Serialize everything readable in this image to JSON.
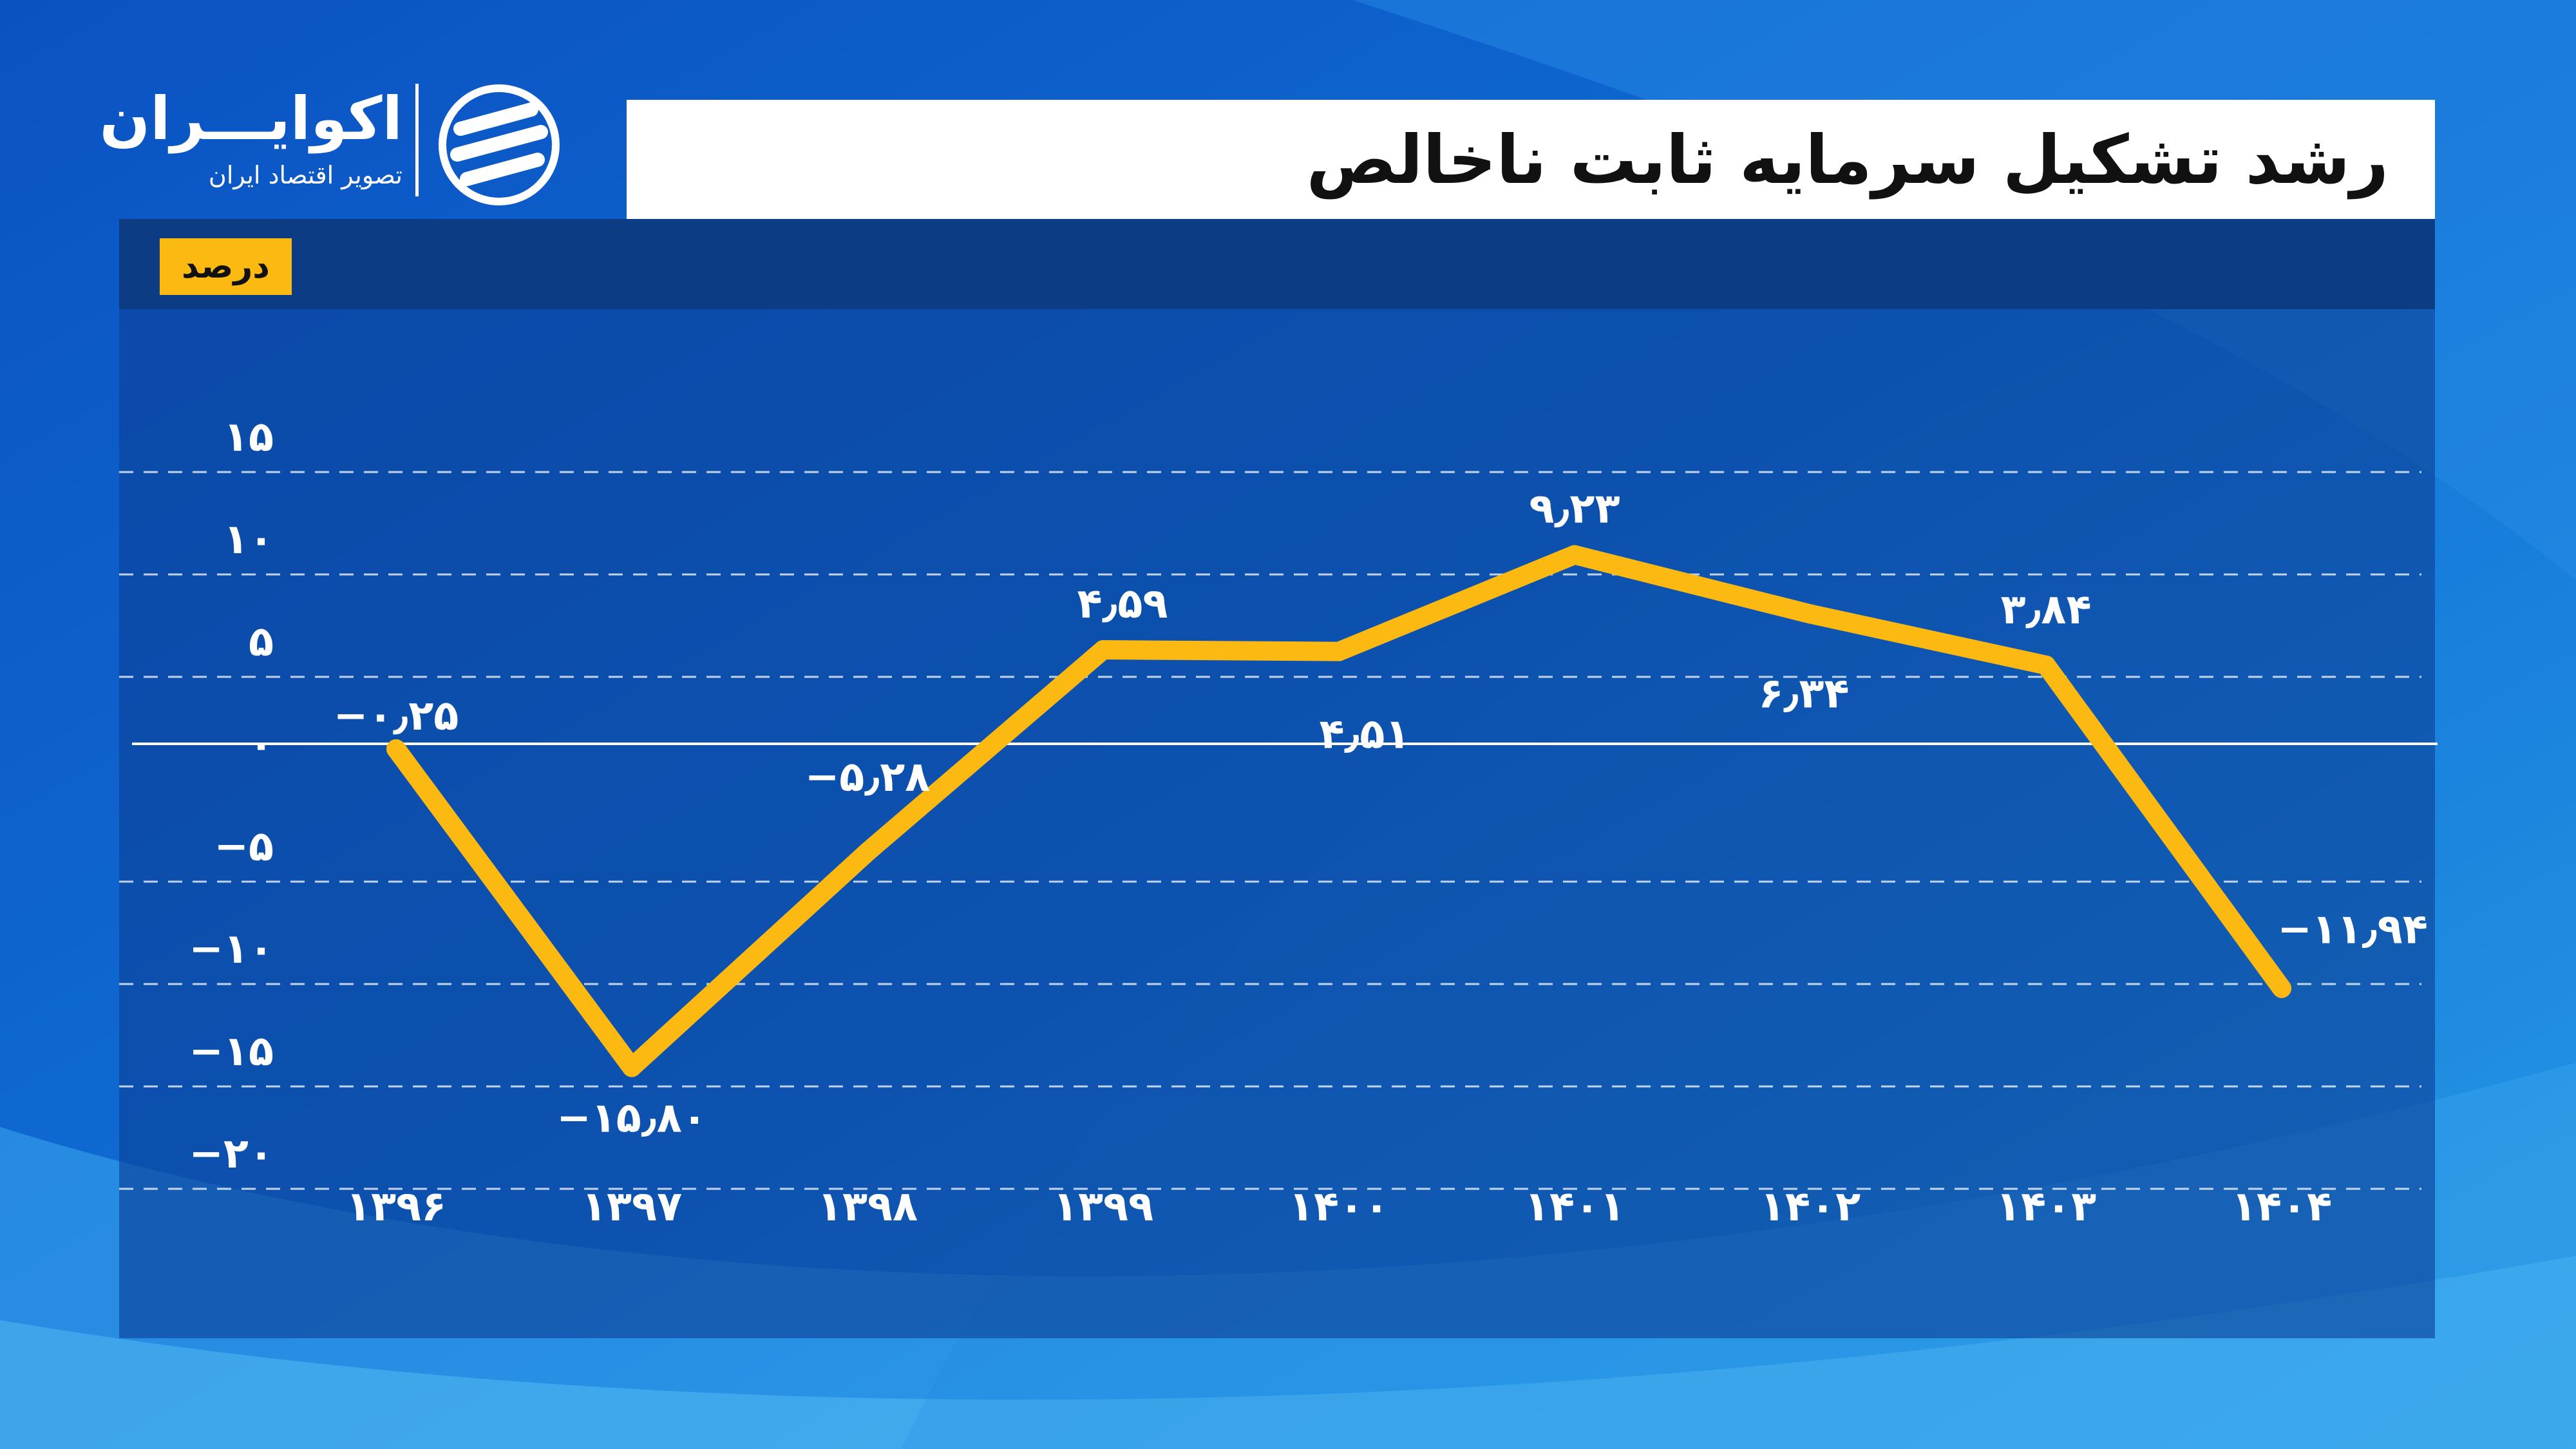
{
  "brand": {
    "name": "اکوایـــران",
    "tagline": "تصویر اقتصاد ایران",
    "logo_icon": "ecoiran-logo-icon"
  },
  "title": "رشد تشکیل سرمایه ثابت ناخالص",
  "unit_label": "درصد",
  "colors": {
    "background": "#1068d2",
    "panel": "#0b3c84",
    "line": "#fcb912",
    "badge": "#fcb912",
    "text": "#ffffff",
    "title_bar": "#ffffff"
  },
  "chart_data": {
    "type": "line",
    "title": "رشد تشکیل سرمایه ثابت ناخالص",
    "xlabel": "",
    "ylabel": "درصد",
    "x": [
      "۱۳۹۶",
      "۱۳۹۷",
      "۱۳۹۸",
      "۱۳۹۹",
      "۱۴۰۰",
      "۱۴۰۱",
      "۱۴۰۲",
      "۱۴۰۳",
      "۱۴۰۴"
    ],
    "series": [
      {
        "values": [
          -0.25,
          -15.8,
          -5.28,
          4.59,
          4.51,
          9.23,
          6.34,
          3.84,
          -11.94
        ],
        "labels": [
          "−۰٫۲۵",
          "−۱۵٫۸۰",
          "−۵٫۲۸",
          "۴٫۵۹",
          "۴٫۵۱",
          "۹٫۲۳",
          "۶٫۳۴",
          "۳٫۸۴",
          "−۱۱٫۹۴"
        ]
      }
    ],
    "y_ticks": [
      15,
      10,
      5,
      0,
      -5,
      -10,
      -15,
      -20
    ],
    "y_tick_labels": [
      "۱۵",
      "۱۰",
      "۵",
      "۰",
      "−۵",
      "−۱۰",
      "−۱۵",
      "−۲۰"
    ],
    "ylim": [
      -20,
      15
    ],
    "grid": "dashed-horizontal",
    "zero_line": true,
    "legend": "none"
  }
}
